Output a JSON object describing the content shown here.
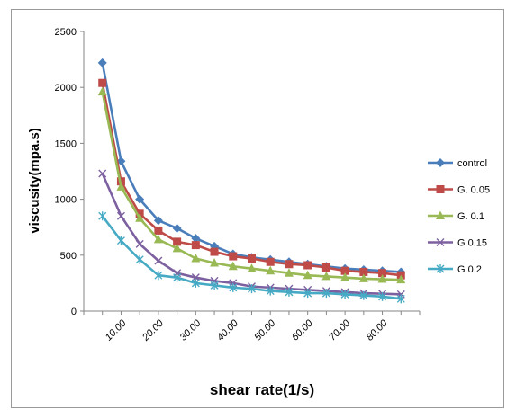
{
  "chart_data": {
    "type": "line",
    "title": "",
    "xlabel": "shear rate(1/s)",
    "ylabel": "viscusity(mpa.s)",
    "ylim": [
      0,
      2500
    ],
    "yticks": [
      "0",
      "500",
      "1000",
      "1500",
      "2000",
      "2500"
    ],
    "xtick_labels": [
      "10.00",
      "20.00",
      "30.00",
      "40.00",
      "50.00",
      "60.00",
      "70.00",
      "80.00"
    ],
    "grid": false,
    "legend_position": "right",
    "x": [
      5,
      10,
      15,
      20,
      25,
      30,
      35,
      40,
      45,
      50,
      55,
      60,
      65,
      70,
      75,
      80,
      85
    ],
    "series": [
      {
        "name": "control",
        "color": "#4a7ebb",
        "marker": "diamond",
        "values": [
          2220,
          1340,
          1000,
          810,
          740,
          650,
          580,
          510,
          480,
          460,
          440,
          420,
          400,
          380,
          370,
          360,
          350
        ]
      },
      {
        "name": "G. 0.05",
        "color": "#be4b48",
        "marker": "square",
        "values": [
          2040,
          1160,
          870,
          720,
          620,
          590,
          530,
          490,
          470,
          440,
          420,
          410,
          390,
          360,
          350,
          340,
          320
        ]
      },
      {
        "name": "G. 0.1",
        "color": "#98b954",
        "marker": "triangle",
        "values": [
          1960,
          1110,
          830,
          640,
          560,
          470,
          430,
          400,
          380,
          360,
          340,
          320,
          310,
          300,
          290,
          285,
          280
        ]
      },
      {
        "name": "G 0.15",
        "color": "#7d60a0",
        "marker": "x",
        "values": [
          1230,
          850,
          600,
          450,
          340,
          300,
          270,
          250,
          220,
          210,
          200,
          190,
          180,
          170,
          160,
          155,
          150
        ]
      },
      {
        "name": "G 0.2",
        "color": "#46aac4",
        "marker": "star",
        "values": [
          850,
          630,
          460,
          320,
          300,
          250,
          230,
          210,
          200,
          180,
          170,
          160,
          160,
          150,
          140,
          130,
          110
        ]
      }
    ]
  }
}
